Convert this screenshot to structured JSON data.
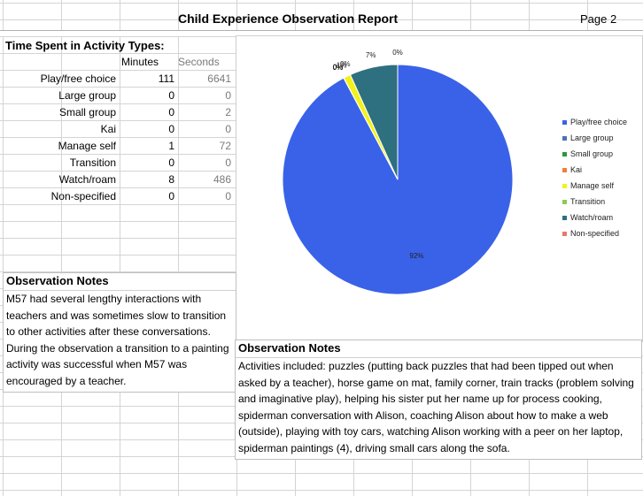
{
  "report": {
    "title": "Child Experience Observation Report",
    "page": "Page 2"
  },
  "time_table": {
    "heading": "Time Spent in Activity Types:",
    "col_minutes": "Minutes",
    "col_seconds": "Seconds",
    "rows": [
      {
        "label": "Play/free choice",
        "minutes": "111",
        "seconds": "6641"
      },
      {
        "label": "Large group",
        "minutes": "0",
        "seconds": "0"
      },
      {
        "label": "Small group",
        "minutes": "0",
        "seconds": "2"
      },
      {
        "label": "Kai",
        "minutes": "0",
        "seconds": "0"
      },
      {
        "label": "Manage self",
        "minutes": "1",
        "seconds": "72"
      },
      {
        "label": "Transition",
        "minutes": "0",
        "seconds": "0"
      },
      {
        "label": "Watch/roam",
        "minutes": "8",
        "seconds": "486"
      },
      {
        "label": "Non-specified",
        "minutes": "0",
        "seconds": "0"
      }
    ]
  },
  "notes_left": {
    "title": "Observation Notes",
    "text": "M57 had several lengthy interactions with teachers and was sometimes slow to transition to other activities after these conversations.  During the observation a transition to a painting activity was successful when M57 was encouraged by a teacher."
  },
  "notes_right": {
    "title": "Observation Notes",
    "text": "Activities included: puzzles (putting back puzzles that had been tipped out when asked by a teacher), horse game on mat, family corner, train tracks (problem solving and imaginative play), helping his sister put her name up for process cooking, spiderman conversation with Alison, coaching Alison about how to make a web (outside), playing with toy cars, watching Alison working with a peer on her laptop, spiderman paintings (4), driving small cars along the sofa."
  },
  "chart_data": {
    "type": "pie",
    "title": "",
    "legend_position": "right",
    "categories": [
      "Play/free choice",
      "Large group",
      "Small group",
      "Kai",
      "Manage self",
      "Transition",
      "Watch/roam",
      "Non-specified"
    ],
    "values": [
      6641,
      0,
      2,
      0,
      72,
      0,
      486,
      0
    ],
    "data_labels": [
      "92%",
      "0%",
      "0%",
      "0%",
      "1%",
      "0%",
      "7%",
      "0%"
    ],
    "colors": [
      "#3a62e8",
      "#4a72b8",
      "#2a9a3a",
      "#ef7f3a",
      "#f2f21a",
      "#8dc85a",
      "#2e6f80",
      "#e87a6a"
    ]
  }
}
